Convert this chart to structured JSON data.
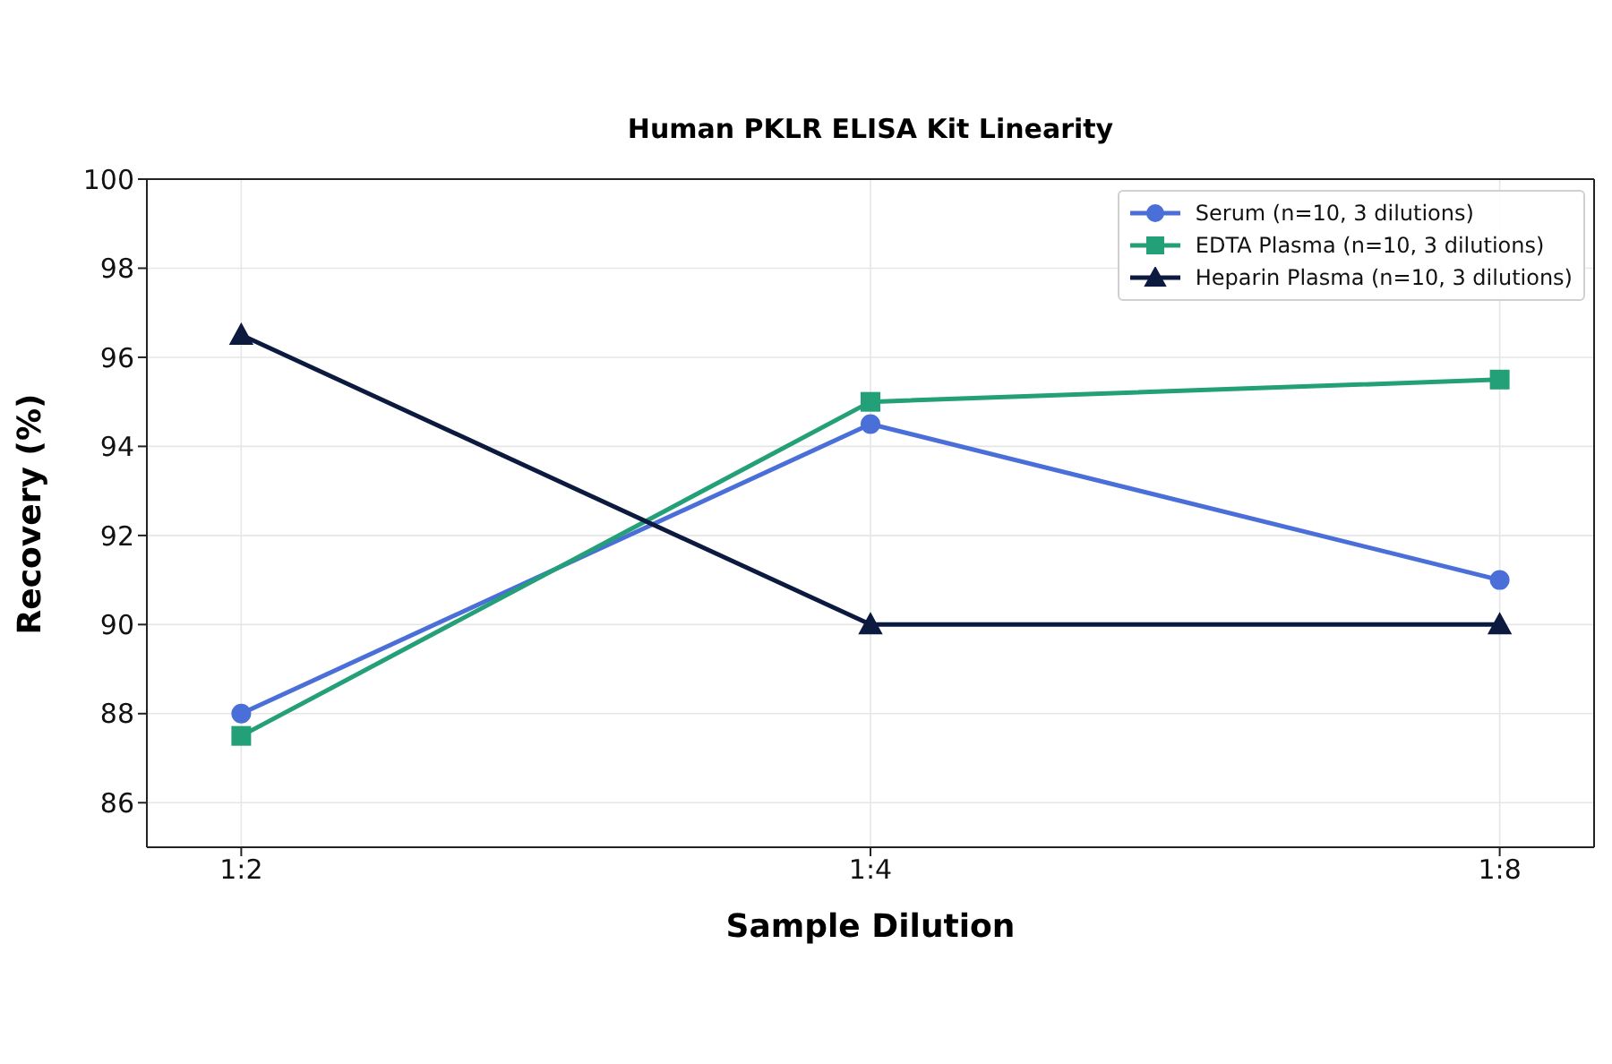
{
  "chart_data": {
    "type": "line",
    "title": "Human PKLR ELISA Kit Linearity",
    "xlabel": "Sample Dilution",
    "ylabel": "Recovery (%)",
    "categories": [
      "1:2",
      "1:4",
      "1:8"
    ],
    "series": [
      {
        "name": "Serum (n=10, 3 dilutions)",
        "color": "#4a6fd8",
        "values": [
          88,
          94.5,
          91
        ],
        "marker": "circle"
      },
      {
        "name": "EDTA Plasma (n=10, 3 dilutions)",
        "color": "#24a078",
        "values": [
          87.5,
          95,
          95.5
        ],
        "marker": "square"
      },
      {
        "name": "Heparin Plasma (n=10, 3 dilutions)",
        "color": "#0c1a40",
        "values": [
          96.5,
          90,
          90
        ],
        "marker": "triangle"
      }
    ],
    "ylim": [
      85,
      100
    ],
    "yticks": [
      86,
      88,
      90,
      92,
      94,
      96,
      98,
      100
    ],
    "grid": true,
    "legend": "top right",
    "line_style": "solid"
  }
}
